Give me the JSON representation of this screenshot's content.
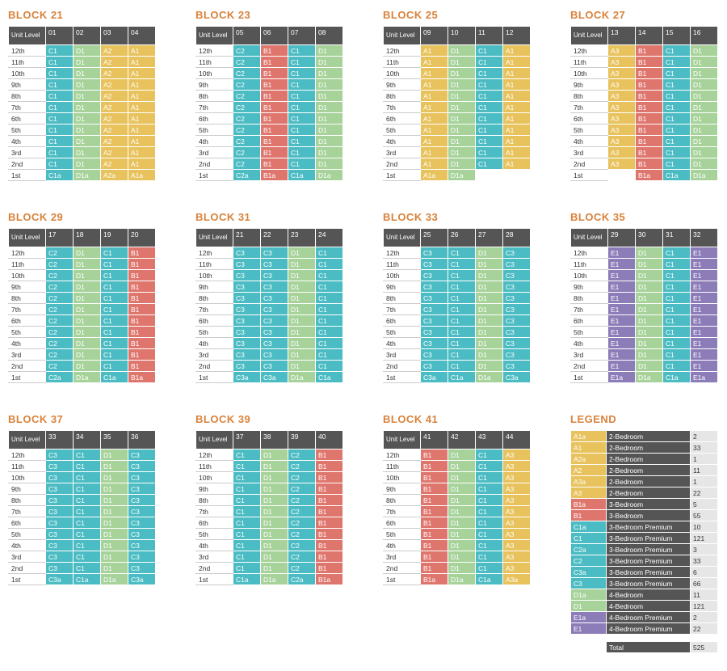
{
  "corner_label": "Unit Level",
  "levels": [
    "12th",
    "11th",
    "10th",
    "9th",
    "8th",
    "7th",
    "6th",
    "5th",
    "4th",
    "3rd",
    "2nd",
    "1st"
  ],
  "colors": {
    "A": "#e8c25c",
    "B": "#df766e",
    "C": "#4bbcc3",
    "D": "#a7d39b",
    "E": "#8c7cb8"
  },
  "blocks": [
    {
      "title": "BLOCK 21",
      "units": [
        "01",
        "02",
        "03",
        "04"
      ],
      "typical": [
        "C1",
        "D1",
        "A2",
        "A1"
      ],
      "first": [
        "C1a",
        "D1a",
        "A2a",
        "A1a"
      ]
    },
    {
      "title": "BLOCK 23",
      "units": [
        "05",
        "06",
        "07",
        "08"
      ],
      "typical": [
        "C2",
        "B1",
        "C1",
        "D1"
      ],
      "first": [
        "C2a",
        "B1a",
        "C1a",
        "D1a"
      ]
    },
    {
      "title": "BLOCK 25",
      "units": [
        "09",
        "10",
        "11",
        "12"
      ],
      "typical": [
        "A1",
        "D1",
        "C1",
        "A1"
      ],
      "first": [
        "A1a",
        "D1a",
        null,
        null
      ]
    },
    {
      "title": "BLOCK 27",
      "units": [
        "13",
        "14",
        "15",
        "16"
      ],
      "typical": [
        "A3",
        "B1",
        "C1",
        "D1"
      ],
      "first": [
        null,
        "B1a",
        "C1a",
        "D1a"
      ]
    },
    {
      "title": "BLOCK 29",
      "units": [
        "17",
        "18",
        "19",
        "20"
      ],
      "typical": [
        "C2",
        "D1",
        "C1",
        "B1"
      ],
      "first": [
        "C2a",
        "D1a",
        "C1a",
        "B1a"
      ]
    },
    {
      "title": "BLOCK 31",
      "units": [
        "21",
        "22",
        "23",
        "24"
      ],
      "typical": [
        "C3",
        "C3",
        "D1",
        "C1"
      ],
      "first": [
        "C3a",
        "C3a",
        "D1a",
        "C1a"
      ]
    },
    {
      "title": "BLOCK 33",
      "units": [
        "25",
        "26",
        "27",
        "28"
      ],
      "typical": [
        "C3",
        "C1",
        "D1",
        "C3"
      ],
      "first": [
        "C3a",
        "C1a",
        "D1a",
        "C3a"
      ]
    },
    {
      "title": "BLOCK 35",
      "units": [
        "29",
        "30",
        "31",
        "32"
      ],
      "typical": [
        "E1",
        "D1",
        "C1",
        "E1"
      ],
      "first": [
        "E1a",
        "D1a",
        "C1a",
        "E1a"
      ]
    },
    {
      "title": "BLOCK 37",
      "units": [
        "33",
        "34",
        "35",
        "36"
      ],
      "typical": [
        "C3",
        "C1",
        "D1",
        "C3"
      ],
      "first": [
        "C3a",
        "C1a",
        "D1a",
        "C3a"
      ]
    },
    {
      "title": "BLOCK 39",
      "units": [
        "37",
        "38",
        "39",
        "40"
      ],
      "typical": [
        "C1",
        "D1",
        "C2",
        "B1"
      ],
      "first": [
        "C1a",
        "D1a",
        "C2a",
        "B1a"
      ]
    },
    {
      "title": "BLOCK 41",
      "units": [
        "41",
        "42",
        "43",
        "44"
      ],
      "typical": [
        "B1",
        "D1",
        "C1",
        "A3"
      ],
      "first": [
        "B1a",
        "D1a",
        "C1a",
        "A3a"
      ]
    }
  ],
  "legend": {
    "title": "LEGEND",
    "rows": [
      {
        "code": "A1a",
        "type": "2-Bedroom",
        "count": 2
      },
      {
        "code": "A1",
        "type": "2-Bedroom",
        "count": 33
      },
      {
        "code": "A2a",
        "type": "2-Bedroom",
        "count": 1
      },
      {
        "code": "A2",
        "type": "2-Bedroom",
        "count": 11
      },
      {
        "code": "A3a",
        "type": "2-Bedroom",
        "count": 1
      },
      {
        "code": "A3",
        "type": "2-Bedroom",
        "count": 22
      },
      {
        "code": "B1a",
        "type": "3-Bedroom",
        "count": 5
      },
      {
        "code": "B1",
        "type": "3-Bedroom",
        "count": 55
      },
      {
        "code": "C1a",
        "type": "3-Bedroom Premium",
        "count": 10
      },
      {
        "code": "C1",
        "type": "3-Bedroom Premium",
        "count": 121
      },
      {
        "code": "C2a",
        "type": "3-Bedroom Premium",
        "count": 3
      },
      {
        "code": "C2",
        "type": "3-Bedroom Premium",
        "count": 33
      },
      {
        "code": "C3a",
        "type": "3-Bedroom Premium",
        "count": 6
      },
      {
        "code": "C3",
        "type": "3-Bedroom Premium",
        "count": 66
      },
      {
        "code": "D1a",
        "type": "4-Bedroom",
        "count": 11
      },
      {
        "code": "D1",
        "type": "4-Bedroom",
        "count": 121
      },
      {
        "code": "E1a",
        "type": "4-Bedroom Premium",
        "count": 2
      },
      {
        "code": "E1",
        "type": "4-Bedroom Premium",
        "count": 22
      }
    ],
    "total_label": "Total",
    "total": 525
  }
}
